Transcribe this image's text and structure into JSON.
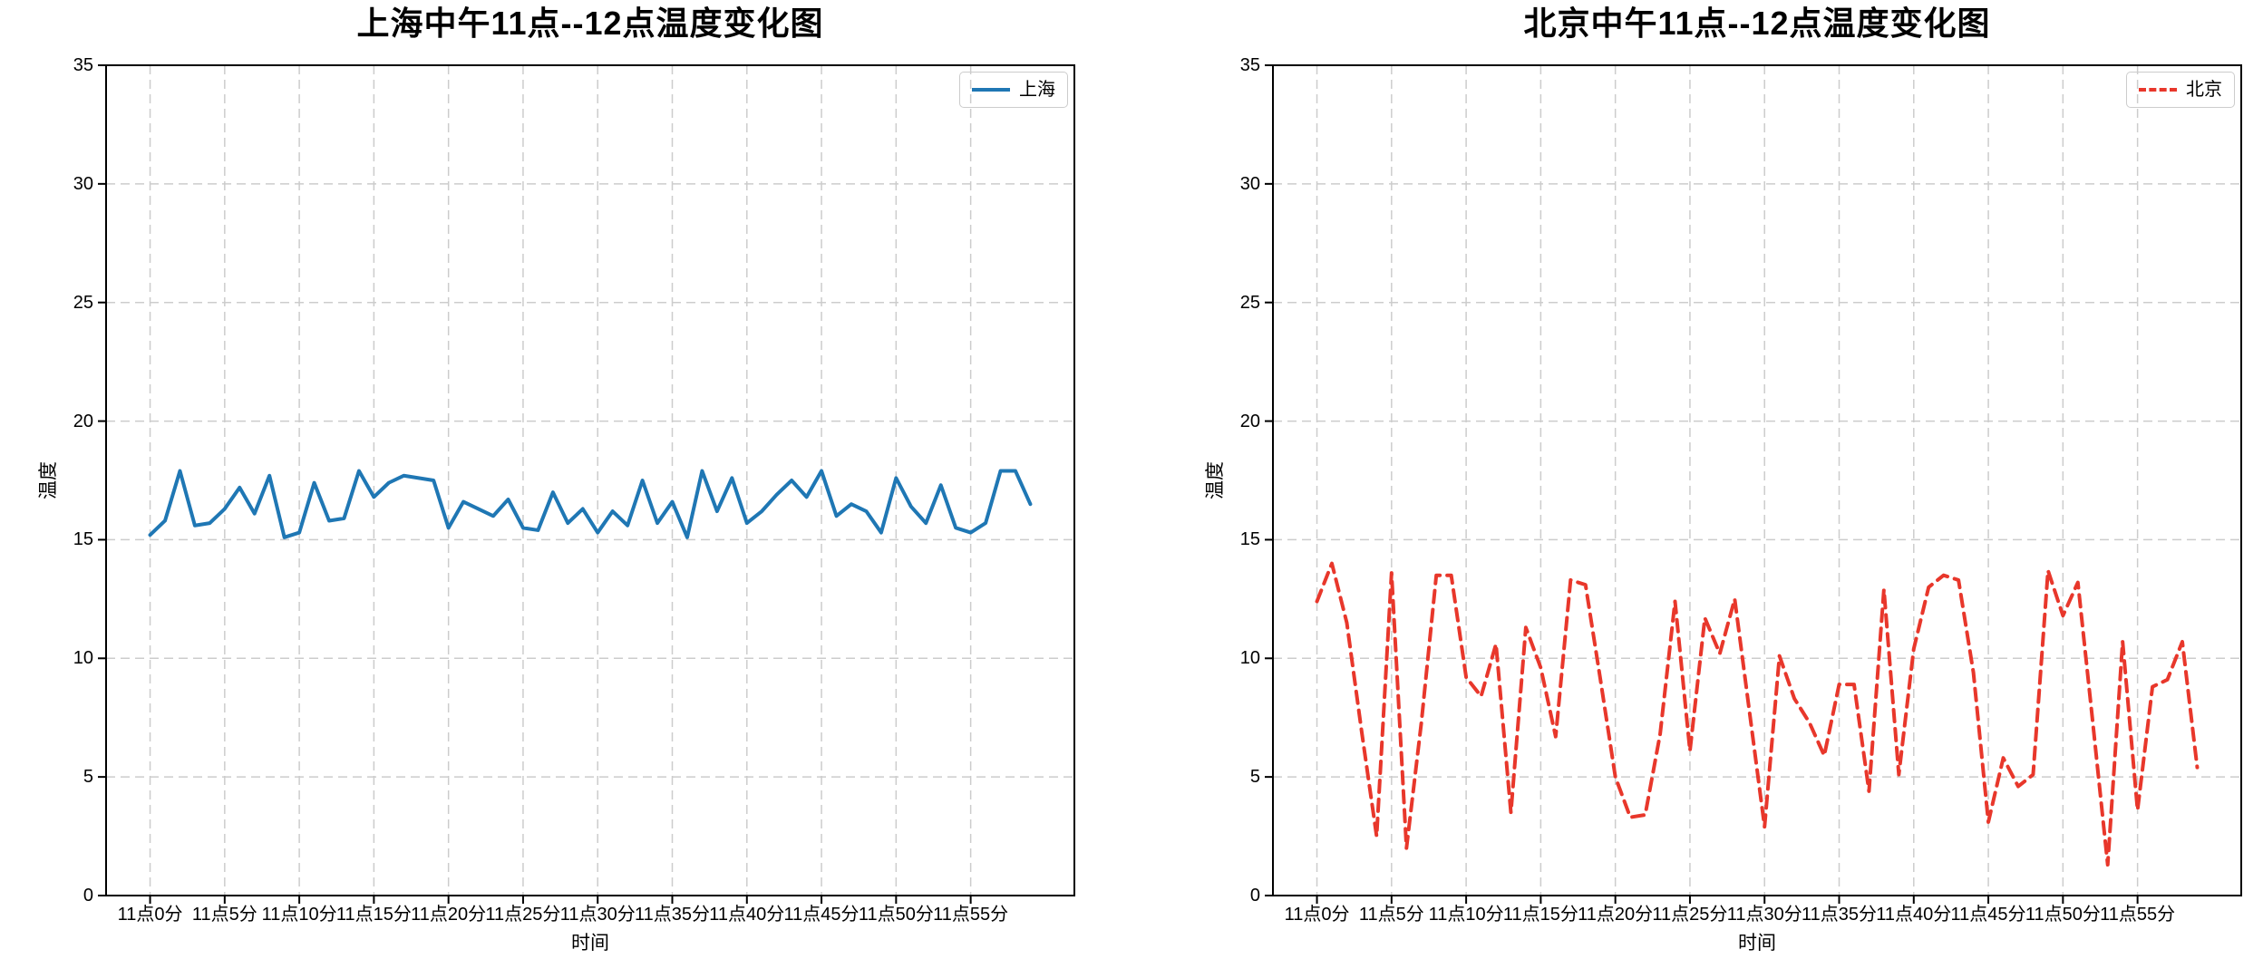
{
  "chart_data": [
    {
      "type": "line",
      "title": "上海中午11点--12点温度变化图",
      "xlabel": "时间",
      "ylabel": "温度",
      "legend": {
        "label": "上海",
        "position": "upper right"
      },
      "line": {
        "color": "#1f77b4",
        "style": "solid",
        "width": 4
      },
      "grid": true,
      "ylim": [
        0,
        35
      ],
      "y_ticks": [
        0,
        5,
        10,
        15,
        20,
        25,
        30,
        35
      ],
      "x_tick_labels": [
        "11点0分",
        "11点5分",
        "11点10分",
        "11点15分",
        "11点20分",
        "11点25分",
        "11点30分",
        "11点35分",
        "11点40分",
        "11点45分",
        "11点50分",
        "11点55分"
      ],
      "x_tick_minutes": [
        0,
        5,
        10,
        15,
        20,
        25,
        30,
        35,
        40,
        45,
        50,
        55
      ],
      "x_minutes_start": 0,
      "x_minutes_step": 1,
      "values": [
        15.2,
        15.8,
        17.9,
        15.6,
        15.7,
        16.3,
        17.2,
        16.1,
        17.7,
        15.1,
        15.3,
        17.4,
        15.8,
        15.9,
        17.9,
        16.8,
        17.4,
        17.7,
        17.6,
        17.5,
        15.5,
        16.6,
        16.3,
        16.0,
        16.7,
        15.5,
        15.4,
        17.0,
        15.7,
        16.3,
        15.3,
        16.2,
        15.6,
        17.5,
        15.7,
        16.6,
        15.1,
        17.9,
        16.2,
        17.6,
        15.7,
        16.2,
        16.9,
        17.5,
        16.8,
        17.9,
        16.0,
        16.5,
        16.2,
        15.3,
        17.6,
        16.4,
        15.7,
        17.3,
        15.5,
        15.3,
        15.7,
        17.9,
        17.9,
        16.5
      ]
    },
    {
      "type": "line",
      "title": "北京中午11点--12点温度变化图",
      "xlabel": "时间",
      "ylabel": "温度",
      "legend": {
        "label": "北京",
        "position": "upper right"
      },
      "line": {
        "color": "#e8372b",
        "style": "dashed",
        "width": 4
      },
      "grid": true,
      "ylim": [
        0,
        35
      ],
      "y_ticks": [
        0,
        5,
        10,
        15,
        20,
        25,
        30,
        35
      ],
      "x_tick_labels": [
        "11点0分",
        "11点5分",
        "11点10分",
        "11点15分",
        "11点20分",
        "11点25分",
        "11点30分",
        "11点35分",
        "11点40分",
        "11点45分",
        "11点50分",
        "11点55分"
      ],
      "x_tick_minutes": [
        0,
        5,
        10,
        15,
        20,
        25,
        30,
        35,
        40,
        45,
        50,
        55
      ],
      "x_minutes_start": 0,
      "x_minutes_step": 1,
      "values": [
        12.4,
        14.0,
        11.5,
        6.9,
        2.5,
        13.6,
        2.0,
        7.3,
        13.5,
        13.5,
        9.2,
        8.4,
        10.6,
        3.5,
        11.3,
        9.6,
        6.7,
        13.3,
        13.1,
        9.1,
        5.0,
        3.3,
        3.4,
        6.8,
        12.4,
        6.1,
        11.7,
        10.2,
        12.5,
        7.7,
        2.9,
        10.1,
        8.3,
        7.3,
        5.9,
        8.9,
        8.9,
        4.4,
        12.9,
        5.1,
        10.4,
        13.0,
        13.5,
        13.3,
        9.4,
        3.1,
        5.8,
        4.6,
        5.1,
        13.7,
        11.8,
        13.2,
        7.3,
        1.3,
        10.7,
        3.6,
        8.8,
        9.1,
        10.7,
        5.4
      ]
    }
  ],
  "style": {
    "grid_color": "#cccccc",
    "spine_color": "#000000",
    "tick_color": "#000000",
    "background": "#ffffff"
  }
}
